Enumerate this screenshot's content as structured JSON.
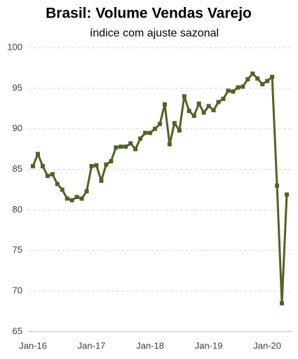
{
  "chart_data": {
    "type": "line",
    "title": "Brasil: Volume Vendas Varejo",
    "subtitle": "índice com ajuste sazonal",
    "categories": [
      "Jan-16",
      null,
      null,
      null,
      null,
      null,
      null,
      null,
      null,
      null,
      null,
      null,
      "Jan-17",
      null,
      null,
      null,
      null,
      null,
      null,
      null,
      null,
      null,
      null,
      null,
      "Jan-18",
      null,
      null,
      null,
      null,
      null,
      null,
      null,
      null,
      null,
      null,
      null,
      "Jan-19",
      null,
      null,
      null,
      null,
      null,
      null,
      null,
      null,
      null,
      null,
      null,
      "Jan-20",
      null,
      null,
      null,
      null
    ],
    "series": [
      {
        "name": "Volume Vendas Varejo",
        "color": "#4f6228",
        "values": [
          85.4,
          86.9,
          85.4,
          84.2,
          84.4,
          83.2,
          82.5,
          81.4,
          81.2,
          81.6,
          81.4,
          82.3,
          85.4,
          85.5,
          83.6,
          85.6,
          86.0,
          87.7,
          87.8,
          87.8,
          88.2,
          87.5,
          88.8,
          89.5,
          89.5,
          90.0,
          90.6,
          93.0,
          88.1,
          90.7,
          89.8,
          94.0,
          92.2,
          91.6,
          93.1,
          92.0,
          92.8,
          92.3,
          93.3,
          93.7,
          94.7,
          94.6,
          95.1,
          95.2,
          96.1,
          96.8,
          96.2,
          95.5,
          95.9,
          96.4,
          83.0,
          68.5,
          81.9
        ]
      }
    ],
    "ylim": [
      65,
      100
    ],
    "yticks": [
      65,
      70,
      75,
      80,
      85,
      90,
      95,
      100
    ],
    "grid": true
  }
}
